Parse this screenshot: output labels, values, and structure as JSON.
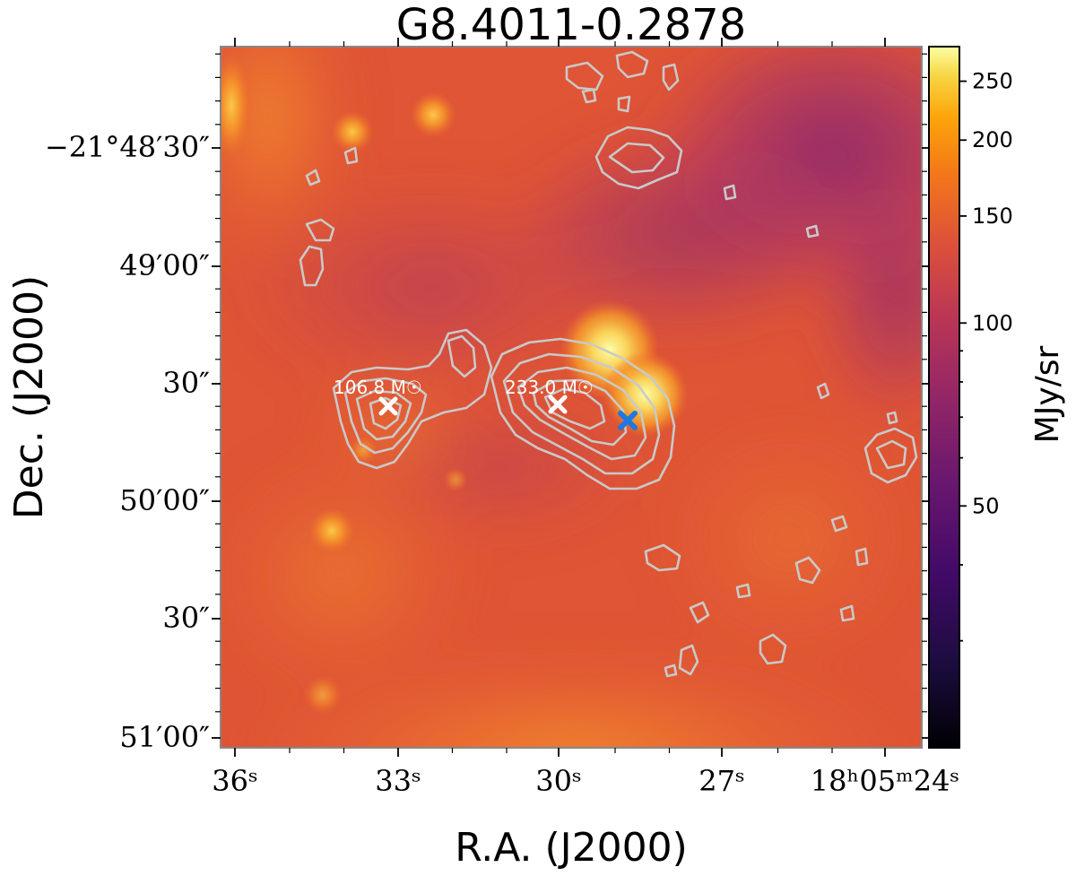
{
  "chart_data": {
    "type": "heatmap",
    "title": "G8.4011-0.2878",
    "xlabel": "R.A. (J2000)",
    "ylabel": "Dec. (J2000)",
    "colorbar_label": "MJy/sr",
    "colormap": "inferno",
    "colorbar_scale": "log",
    "colorbar_range": [
      20,
      285
    ],
    "colorbar_ticks": [
      {
        "value": 50,
        "label": "50"
      },
      {
        "value": 100,
        "label": "100"
      },
      {
        "value": 150,
        "label": "150"
      },
      {
        "value": 200,
        "label": "200"
      },
      {
        "value": 250,
        "label": "250"
      }
    ],
    "x_ticks": [
      "36ˢ",
      "33ˢ",
      "30ˢ",
      "27ˢ",
      "18ʰ05ᵐ24ˢ"
    ],
    "y_ticks": [
      "−21°48′30″",
      "49′00″",
      "30″",
      "50′00″",
      "30″",
      "51′00″"
    ],
    "contours": "grey dense-gas contours",
    "sources": [
      {
        "label": "106.8 M☉",
        "mass_msun": 106.8,
        "marker": "white x"
      },
      {
        "label": "233.0 M☉",
        "mass_msun": 233.0,
        "marker": "white x"
      },
      {
        "label": "",
        "marker": "blue x"
      }
    ],
    "bright_spots": [
      {
        "name": "central-ir-source",
        "level_mjy_sr": 285
      },
      {
        "name": "central-ir-source-secondary",
        "level_mjy_sr": 270
      },
      {
        "name": "northern-source-a",
        "level_mjy_sr": 160
      },
      {
        "name": "northern-source-b",
        "level_mjy_sr": 150
      },
      {
        "name": "southern-source",
        "level_mjy_sr": 150
      },
      {
        "name": "west-edge-glow",
        "level_mjy_sr": 160
      }
    ],
    "colors": {
      "background": "#df5535",
      "dark_region": "#8f2a6e",
      "warm_region": "#f5882a",
      "peak": "#fcfda8",
      "contour": "#c9c9c9",
      "marker_white": "#ffffff",
      "marker_blue": "#1f78e0"
    }
  }
}
